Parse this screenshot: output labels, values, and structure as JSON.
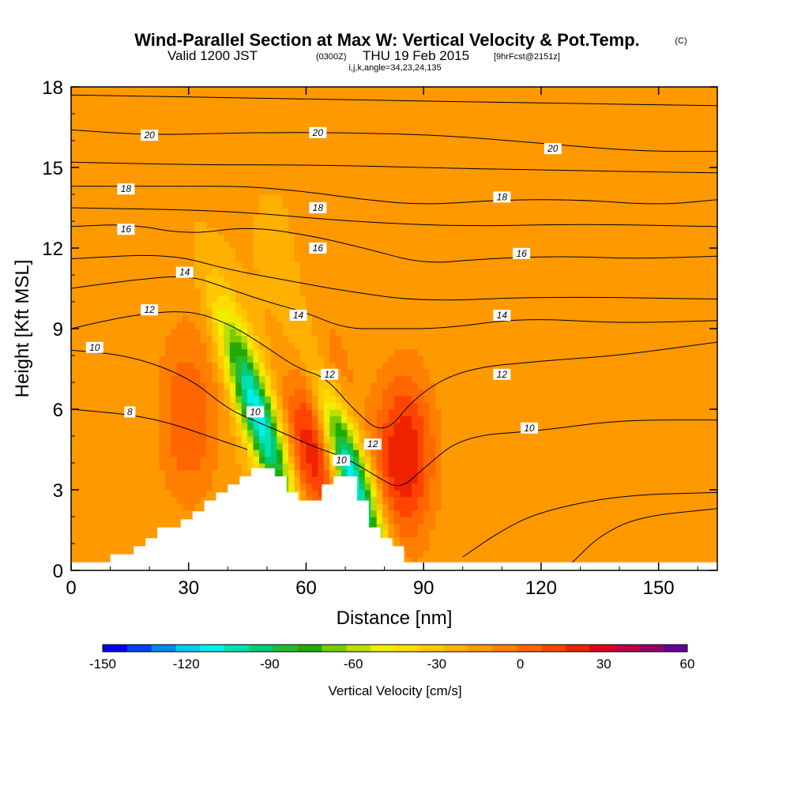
{
  "title": {
    "main": "Wind-Parallel Section at Max W: Vertical Velocity & Pot.Temp.",
    "copyright": "(C)",
    "valid_prefix": "Valid 1200 JST",
    "utc": "(0300Z)",
    "date": "THU 19 Feb 2015",
    "fcst": "[9hrFcst@2151z]",
    "indices": "i,j,k,angle=34,23,24,135"
  },
  "chart_data": {
    "type": "heatmap",
    "xlabel": "Distance [nm]",
    "ylabel": "Height [Kft MSL]",
    "xlim": [
      0,
      165
    ],
    "ylim": [
      0,
      18
    ],
    "x_ticks": [
      "0",
      "30",
      "60",
      "90",
      "120",
      "150"
    ],
    "y_ticks": [
      "0",
      "3",
      "6",
      "9",
      "12",
      "15",
      "18"
    ],
    "colorbar": {
      "label": "Vertical Velocity [cm/s]",
      "min": -150,
      "max": 60,
      "step": 10,
      "tick_labels": [
        "-150",
        "-120",
        "-90",
        "-60",
        "-30",
        "0",
        "30",
        "60"
      ],
      "colors": [
        "#0000ee",
        "#0044ee",
        "#0088ee",
        "#00ccee",
        "#00eeee",
        "#00e0b0",
        "#00cc77",
        "#22bb33",
        "#22aa00",
        "#77cc00",
        "#bbdd00",
        "#eeee00",
        "#ffdd00",
        "#ffc800",
        "#ffb000",
        "#ff9900",
        "#ff7f00",
        "#ff6600",
        "#ff4400",
        "#ee2200",
        "#dd0022",
        "#bb0044",
        "#990066",
        "#660099"
      ]
    },
    "field": {
      "background_w": 0,
      "features": [
        {
          "name": "updraft-west",
          "x": 30,
          "y": 5.7,
          "w": 30
        },
        {
          "name": "updraft-mid",
          "x": 63,
          "y": 5.2,
          "w": 55
        },
        {
          "name": "updraft-east",
          "x": 85,
          "y": 4.2,
          "w": 50
        },
        {
          "name": "downdraft-lee-1",
          "x": 48,
          "y": 5.7,
          "w": -110
        },
        {
          "name": "downdraft-lee-2",
          "x": 71,
          "y": 3.8,
          "w": -120
        },
        {
          "name": "weak-up-upper-west",
          "x": 20,
          "y": 12,
          "w": 5
        },
        {
          "name": "weak-up-upper-east",
          "x": 145,
          "y": 16,
          "w": 5
        }
      ]
    },
    "terrain": [
      [
        0,
        0.3
      ],
      [
        10,
        0.3
      ],
      [
        10,
        0.6
      ],
      [
        16,
        0.6
      ],
      [
        16,
        0.9
      ],
      [
        19,
        0.9
      ],
      [
        19,
        1.2
      ],
      [
        22,
        1.2
      ],
      [
        22,
        1.6
      ],
      [
        28,
        1.6
      ],
      [
        28,
        1.9
      ],
      [
        31,
        1.9
      ],
      [
        31,
        2.2
      ],
      [
        34,
        2.2
      ],
      [
        34,
        2.6
      ],
      [
        37,
        2.6
      ],
      [
        37,
        2.9
      ],
      [
        40,
        2.9
      ],
      [
        40,
        3.2
      ],
      [
        43,
        3.2
      ],
      [
        43,
        3.5
      ],
      [
        46,
        3.5
      ],
      [
        46,
        3.8
      ],
      [
        52,
        3.8
      ],
      [
        52,
        3.5
      ],
      [
        55,
        3.5
      ],
      [
        55,
        2.9
      ],
      [
        58,
        2.9
      ],
      [
        58,
        2.6
      ],
      [
        64,
        2.6
      ],
      [
        64,
        3.2
      ],
      [
        67,
        3.2
      ],
      [
        67,
        3.5
      ],
      [
        73,
        3.5
      ],
      [
        73,
        2.6
      ],
      [
        76,
        2.6
      ],
      [
        76,
        1.6
      ],
      [
        79,
        1.6
      ],
      [
        79,
        1.2
      ],
      [
        82,
        1.2
      ],
      [
        82,
        0.9
      ],
      [
        85,
        0.9
      ],
      [
        85,
        0.3
      ],
      [
        165,
        0.3
      ]
    ],
    "contours": [
      {
        "label": "8",
        "pts": [
          [
            0,
            6.0
          ],
          [
            15,
            5.8
          ],
          [
            25,
            5.5
          ],
          [
            35,
            5.0
          ],
          [
            45,
            4.5
          ]
        ]
      },
      {
        "label": "10",
        "pts": [
          [
            0,
            8.2
          ],
          [
            15,
            8.0
          ],
          [
            30,
            7.2
          ],
          [
            40,
            6.0
          ],
          [
            48,
            5.5
          ],
          [
            56,
            5.0
          ],
          [
            62,
            4.6
          ],
          [
            70,
            4.2
          ],
          [
            78,
            3.5
          ],
          [
            84,
            3.0
          ],
          [
            90,
            3.8
          ],
          [
            100,
            5.0
          ],
          [
            120,
            5.2
          ],
          [
            140,
            5.6
          ],
          [
            165,
            5.6
          ]
        ]
      },
      {
        "label": "12",
        "pts": [
          [
            0,
            9.0
          ],
          [
            15,
            9.5
          ],
          [
            30,
            9.7
          ],
          [
            40,
            9.2
          ],
          [
            48,
            8.5
          ],
          [
            58,
            7.5
          ],
          [
            65,
            7.2
          ],
          [
            72,
            6.0
          ],
          [
            80,
            5.0
          ],
          [
            88,
            6.5
          ],
          [
            100,
            7.5
          ],
          [
            120,
            7.8
          ],
          [
            140,
            8.0
          ],
          [
            165,
            8.5
          ]
        ]
      },
      {
        "label": "14",
        "pts": [
          [
            0,
            10.5
          ],
          [
            15,
            10.8
          ],
          [
            30,
            11.0
          ],
          [
            40,
            10.5
          ],
          [
            50,
            10.0
          ],
          [
            60,
            9.6
          ],
          [
            70,
            9.0
          ],
          [
            80,
            9.0
          ],
          [
            95,
            9.0
          ],
          [
            115,
            9.4
          ],
          [
            140,
            9.2
          ],
          [
            165,
            9.3
          ]
        ]
      },
      {
        "label": "16",
        "pts": [
          [
            0,
            12.8
          ],
          [
            15,
            12.9
          ],
          [
            30,
            12.5
          ],
          [
            45,
            12.8
          ],
          [
            60,
            12.5
          ],
          [
            75,
            12.0
          ],
          [
            90,
            11.4
          ],
          [
            105,
            11.6
          ],
          [
            125,
            11.7
          ],
          [
            145,
            11.6
          ],
          [
            165,
            11.7
          ]
        ]
      },
      {
        "label": "18",
        "pts": [
          [
            0,
            14.3
          ],
          [
            15,
            14.3
          ],
          [
            30,
            14.3
          ],
          [
            45,
            14.3
          ],
          [
            60,
            14.1
          ],
          [
            75,
            13.8
          ],
          [
            90,
            13.6
          ],
          [
            110,
            13.8
          ],
          [
            130,
            13.8
          ],
          [
            150,
            13.6
          ],
          [
            165,
            13.8
          ]
        ]
      },
      {
        "label": "20",
        "pts": [
          [
            0,
            16.4
          ],
          [
            20,
            16.2
          ],
          [
            45,
            16.3
          ],
          [
            70,
            16.3
          ],
          [
            95,
            16.2
          ],
          [
            120,
            15.9
          ],
          [
            145,
            15.6
          ],
          [
            165,
            15.6
          ]
        ]
      },
      {
        "label": "",
        "pts": [
          [
            0,
            17.7
          ],
          [
            40,
            17.6
          ],
          [
            80,
            17.5
          ],
          [
            120,
            17.4
          ],
          [
            165,
            17.3
          ]
        ]
      },
      {
        "label": "",
        "pts": [
          [
            0,
            15.2
          ],
          [
            30,
            15.1
          ],
          [
            60,
            15.1
          ],
          [
            90,
            15.0
          ],
          [
            120,
            14.9
          ],
          [
            165,
            14.8
          ]
        ]
      },
      {
        "label": "",
        "pts": [
          [
            0,
            13.5
          ],
          [
            40,
            13.4
          ],
          [
            70,
            13.0
          ],
          [
            100,
            12.8
          ],
          [
            130,
            12.9
          ],
          [
            165,
            12.8
          ]
        ]
      },
      {
        "label": "",
        "pts": [
          [
            0,
            11.6
          ],
          [
            25,
            11.8
          ],
          [
            40,
            11.2
          ],
          [
            55,
            10.8
          ],
          [
            70,
            10.4
          ],
          [
            90,
            10.0
          ],
          [
            120,
            10.2
          ],
          [
            165,
            10.1
          ]
        ]
      },
      {
        "label": "",
        "pts": [
          [
            100,
            0.5
          ],
          [
            110,
            1.5
          ],
          [
            120,
            2.2
          ],
          [
            140,
            2.8
          ],
          [
            165,
            2.9
          ]
        ]
      },
      {
        "label": "",
        "pts": [
          [
            128,
            0.3
          ],
          [
            135,
            1.3
          ],
          [
            145,
            2.0
          ],
          [
            165,
            2.3
          ]
        ]
      }
    ],
    "contour_labels": [
      {
        "text": "20",
        "x": 20,
        "y": 16.2
      },
      {
        "text": "20",
        "x": 63,
        "y": 16.3
      },
      {
        "text": "20",
        "x": 123,
        "y": 15.7
      },
      {
        "text": "18",
        "x": 14,
        "y": 14.2
      },
      {
        "text": "18",
        "x": 63,
        "y": 13.5
      },
      {
        "text": "18",
        "x": 110,
        "y": 13.9
      },
      {
        "text": "16",
        "x": 14,
        "y": 12.7
      },
      {
        "text": "16",
        "x": 63,
        "y": 12.0
      },
      {
        "text": "16",
        "x": 115,
        "y": 11.8
      },
      {
        "text": "14",
        "x": 29,
        "y": 11.1
      },
      {
        "text": "14",
        "x": 58,
        "y": 9.5
      },
      {
        "text": "14",
        "x": 110,
        "y": 9.5
      },
      {
        "text": "12",
        "x": 20,
        "y": 9.7
      },
      {
        "text": "12",
        "x": 66,
        "y": 7.3
      },
      {
        "text": "12",
        "x": 110,
        "y": 7.3
      },
      {
        "text": "12",
        "x": 77,
        "y": 4.7
      },
      {
        "text": "10",
        "x": 6,
        "y": 8.3
      },
      {
        "text": "10",
        "x": 47,
        "y": 5.9
      },
      {
        "text": "10",
        "x": 69,
        "y": 4.1
      },
      {
        "text": "10",
        "x": 117,
        "y": 5.3
      },
      {
        "text": "8",
        "x": 15,
        "y": 5.9
      }
    ]
  }
}
